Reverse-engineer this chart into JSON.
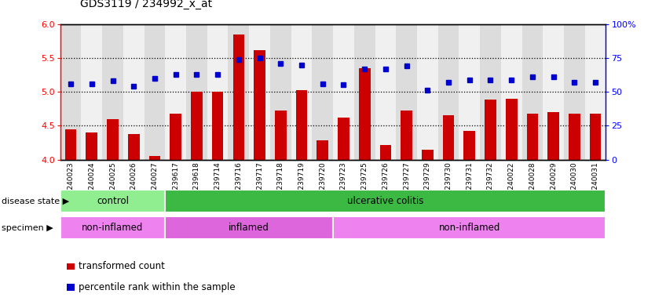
{
  "title": "GDS3119 / 234992_x_at",
  "samples": [
    "GSM240023",
    "GSM240024",
    "GSM240025",
    "GSM240026",
    "GSM240027",
    "GSM239617",
    "GSM239618",
    "GSM239714",
    "GSM239716",
    "GSM239717",
    "GSM239718",
    "GSM239719",
    "GSM239720",
    "GSM239723",
    "GSM239725",
    "GSM239726",
    "GSM239727",
    "GSM239729",
    "GSM239730",
    "GSM239731",
    "GSM239732",
    "GSM240022",
    "GSM240028",
    "GSM240029",
    "GSM240030",
    "GSM240031"
  ],
  "bar_values": [
    4.45,
    4.4,
    4.6,
    4.38,
    4.05,
    4.68,
    5.0,
    5.0,
    5.85,
    5.62,
    4.72,
    5.02,
    4.28,
    4.62,
    5.35,
    4.22,
    4.72,
    4.15,
    4.65,
    4.42,
    4.88,
    4.9,
    4.68,
    4.7,
    4.68,
    4.68
  ],
  "dot_pct": [
    56,
    56,
    58,
    54,
    60,
    63,
    63,
    63,
    74,
    75,
    71,
    70,
    56,
    55,
    67,
    67,
    69,
    51,
    57,
    59,
    59,
    59,
    61,
    61,
    57,
    57
  ],
  "bar_color": "#cc0000",
  "dot_color": "#0000cc",
  "ylim_left": [
    4.0,
    6.0
  ],
  "ylim_right": [
    0,
    100
  ],
  "yticks_left": [
    4.0,
    4.5,
    5.0,
    5.5,
    6.0
  ],
  "yticks_right": [
    0,
    25,
    50,
    75,
    100
  ],
  "grid_vals": [
    4.5,
    5.0,
    5.5
  ],
  "disease_state_groups": [
    {
      "label": "control",
      "start": 0,
      "end": 5,
      "color": "#90ee90"
    },
    {
      "label": "ulcerative colitis",
      "start": 5,
      "end": 26,
      "color": "#3cb943"
    }
  ],
  "specimen_groups": [
    {
      "label": "non-inflamed",
      "start": 0,
      "end": 5,
      "color": "#ee82ee"
    },
    {
      "label": "inflamed",
      "start": 5,
      "end": 13,
      "color": "#dd66dd"
    },
    {
      "label": "non-inflamed",
      "start": 13,
      "end": 26,
      "color": "#ee82ee"
    }
  ],
  "col_bg_even": "#dcdcdc",
  "col_bg_odd": "#f0f0f0"
}
